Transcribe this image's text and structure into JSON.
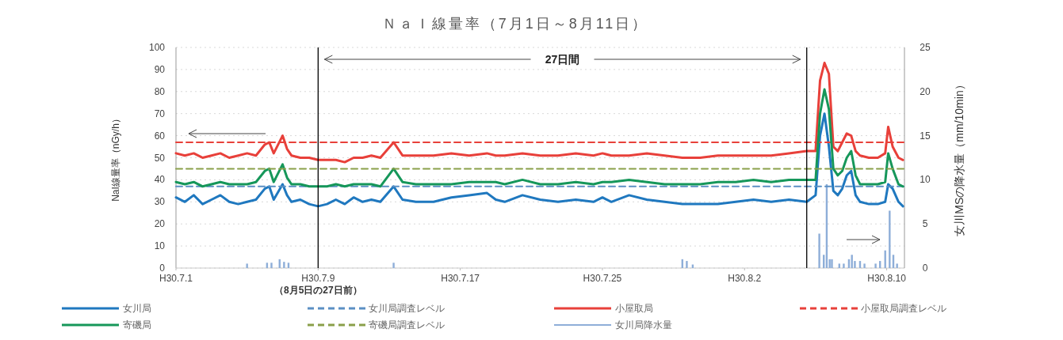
{
  "chart_data": {
    "type": "line",
    "title": "ＮａＩ線量率（7月1日～8月11日）",
    "ylabel": "NaI線量率（nGy/h）",
    "y2label": "女川MSの降水量（mm/10min）",
    "x": [
      "--07-01T00:00",
      "--07-01T12:00",
      "--07-02T00:00",
      "--07-02T12:00",
      "--07-03T00:00",
      "--07-03T12:00",
      "--07-04T00:00",
      "--07-04T12:00",
      "--07-05T00:00",
      "--07-05T12:00",
      "--07-06T00:00",
      "--07-06T06:00",
      "--07-06T12:00",
      "--07-07T00:00",
      "--07-07T06:00",
      "--07-07T12:00",
      "--07-08T00:00",
      "--07-08T12:00",
      "--07-09T00:00",
      "--07-09T12:00",
      "--07-10T00:00",
      "--07-10T12:00",
      "--07-11T00:00",
      "--07-11T12:00",
      "--07-12T00:00",
      "--07-12T12:00",
      "--07-13T06:00",
      "--07-13T18:00",
      "--07-14T12:00",
      "--07-15T12:00",
      "--07-16T12:00",
      "--07-17T12:00",
      "--07-18T12:00",
      "--07-19T00:00",
      "--07-19T12:00",
      "--07-20T12:00",
      "--07-21T12:00",
      "--07-22T12:00",
      "--07-23T12:00",
      "--07-24T12:00",
      "--07-25T00:00",
      "--07-25T12:00",
      "--07-26T12:00",
      "--07-27T12:00",
      "--07-28T12:00",
      "--07-29T12:00",
      "--07-30T12:00",
      "--07-31T12:00",
      "--08-01T12:00",
      "--08-02T12:00",
      "--08-03T12:00",
      "--08-04T12:00",
      "--08-05T12:00",
      "--08-06T00:00",
      "--08-06T06:00",
      "--08-06T12:00",
      "--08-06T18:00",
      "--08-07T00:00",
      "--08-07T06:00",
      "--08-07T12:00",
      "--08-07T18:00",
      "--08-08T00:00",
      "--08-08T06:00",
      "--08-08T12:00",
      "--08-09T00:00",
      "--08-09T12:00",
      "--08-09T22:00",
      "--08-10T02:00",
      "--08-10T08:00",
      "--08-10T16:00",
      "--08-10T22:00"
    ],
    "xlim": [
      "--07-01",
      "--08-11"
    ],
    "xticks": [
      {
        "value": "--07-01",
        "label": "H30.7.1"
      },
      {
        "value": "--07-09",
        "label": "H30.7.9"
      },
      {
        "value": "--07-17",
        "label": "H30.7.17"
      },
      {
        "value": "--07-25",
        "label": "H30.7.25"
      },
      {
        "value": "--08-02",
        "label": "H30.8.2"
      },
      {
        "value": "--08-10",
        "label": "H30.8.10"
      }
    ],
    "ylim": [
      0,
      100
    ],
    "yticks": [
      0,
      10,
      20,
      30,
      40,
      50,
      60,
      70,
      80,
      90,
      100
    ],
    "y2lim": [
      0,
      25
    ],
    "y2ticks": [
      0,
      5,
      10,
      15,
      20,
      25
    ],
    "grid": "y",
    "legend": "bottom",
    "series": [
      {
        "name": "女川局",
        "color": "#1f78bf",
        "values": [
          32,
          30,
          33,
          29,
          31,
          33,
          30,
          29,
          30,
          31,
          36,
          37,
          31,
          38,
          33,
          30,
          31,
          29,
          28,
          29,
          31,
          29,
          32,
          30,
          31,
          30,
          37,
          31,
          30,
          30,
          32,
          33,
          34,
          31,
          30,
          33,
          31,
          30,
          31,
          30,
          32,
          30,
          33,
          31,
          30,
          29,
          29,
          29,
          30,
          31,
          30,
          31,
          30,
          33,
          60,
          70,
          55,
          35,
          33,
          36,
          42,
          44,
          33,
          30,
          29,
          29,
          30,
          38,
          36,
          30,
          28
        ]
      },
      {
        "name": "女川局調査レベル",
        "color": "#5b8fc4",
        "line_style": "dashed",
        "x": [
          "--07-01",
          "--08-11"
        ],
        "values": [
          37,
          37
        ]
      },
      {
        "name": "小屋取局",
        "color": "#e8403a",
        "values": [
          52,
          51,
          52,
          50,
          51,
          52,
          50,
          51,
          52,
          51,
          56,
          57,
          52,
          60,
          54,
          51,
          50,
          50,
          49,
          49,
          49,
          48,
          50,
          50,
          51,
          50,
          57,
          51,
          51,
          51,
          52,
          51,
          52,
          51,
          51,
          52,
          51,
          51,
          52,
          51,
          52,
          51,
          51,
          52,
          51,
          50,
          50,
          51,
          51,
          51,
          51,
          52,
          53,
          53,
          85,
          93,
          88,
          55,
          53,
          57,
          61,
          60,
          53,
          51,
          50,
          50,
          52,
          64,
          55,
          50,
          49
        ]
      },
      {
        "name": "小屋取局調査レベル",
        "color": "#e8403a",
        "line_style": "dashed",
        "x": [
          "--07-01",
          "--08-11"
        ],
        "values": [
          57,
          57
        ]
      },
      {
        "name": "寄磯局",
        "color": "#16975a",
        "values": [
          39,
          38,
          39,
          37,
          38,
          39,
          38,
          38,
          38,
          39,
          44,
          45,
          39,
          47,
          41,
          38,
          38,
          37,
          37,
          37,
          38,
          37,
          38,
          38,
          38,
          37,
          45,
          39,
          38,
          38,
          38,
          39,
          39,
          39,
          38,
          40,
          38,
          38,
          39,
          38,
          39,
          39,
          40,
          39,
          38,
          38,
          38,
          39,
          39,
          40,
          39,
          40,
          40,
          40,
          70,
          81,
          72,
          45,
          42,
          44,
          50,
          53,
          42,
          38,
          38,
          38,
          39,
          52,
          45,
          38,
          37
        ]
      },
      {
        "name": "寄磯局調査レベル",
        "color": "#8aa04a",
        "line_style": "dashed",
        "x": [
          "--07-01",
          "--08-11"
        ],
        "values": [
          45,
          45
        ]
      },
      {
        "name": "女川局降水量",
        "color": "#8eaed8",
        "type": "bar",
        "axis": "y2",
        "x": [
          "--07-05T00:00",
          "--07-06T03:00",
          "--07-06T09:00",
          "--07-06T20:00",
          "--07-07T02:00",
          "--07-07T08:00",
          "--07-13T06:00",
          "--07-29T12:00",
          "--07-29T18:00",
          "--07-30T02:00",
          "--08-06T05:00",
          "--08-06T11:00",
          "--08-06T15:00",
          "--08-06T19:00",
          "--08-06T22:00",
          "--08-07T08:00",
          "--08-07T14:00",
          "--08-07T21:00",
          "--08-08T01:00",
          "--08-08T05:00",
          "--08-08T12:00",
          "--08-08T18:00",
          "--08-09T09:00",
          "--08-09T15:00",
          "--08-09T22:00",
          "--08-10T04:00",
          "--08-10T09:00",
          "--08-10T14:00"
        ],
        "values": [
          0.5,
          0.6,
          0.6,
          1.0,
          0.7,
          0.6,
          0.6,
          1.0,
          0.8,
          0.4,
          3.9,
          1.5,
          9.5,
          1.0,
          1.0,
          0.5,
          0.5,
          1.0,
          1.5,
          0.8,
          0.8,
          0.5,
          0.5,
          0.8,
          2.0,
          6.5,
          1.5,
          0.5
        ]
      }
    ],
    "ref_lines": [
      {
        "axis": "x",
        "value": "--07-09",
        "label": "（8月5日の27日前）",
        "color": "#000000"
      },
      {
        "axis": "x",
        "value": "--08-05T12:00",
        "color": "#000000"
      }
    ],
    "annotations": [
      "27日間"
    ]
  }
}
